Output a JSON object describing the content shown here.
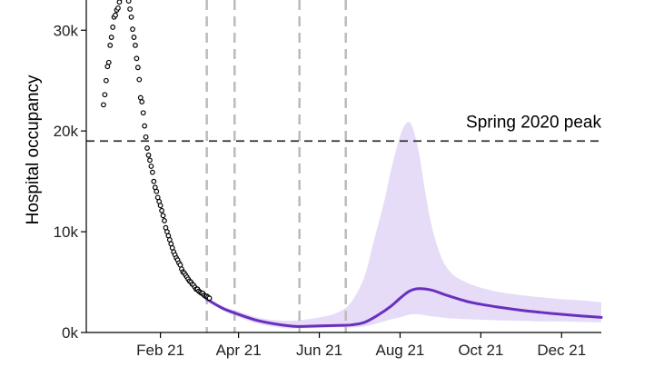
{
  "chart_data": {
    "type": "line",
    "title": "",
    "xlabel": "",
    "ylabel": "Hospital occupancy",
    "x_ticks": [
      "Feb 21",
      "Apr 21",
      "Jun 21",
      "Aug 21",
      "Oct 21",
      "Dec 21"
    ],
    "x_tick_dates": [
      "2021-02-01",
      "2021-04-01",
      "2021-06-01",
      "2021-08-01",
      "2021-10-01",
      "2021-12-01"
    ],
    "xlim": [
      "2020-12-07",
      "2021-12-31"
    ],
    "y_ticks": [
      0,
      10000,
      20000,
      30000
    ],
    "y_tick_labels": [
      "0k",
      "10k",
      "20k",
      "30k"
    ],
    "ylim": [
      0,
      33000
    ],
    "reference_line": {
      "label": "Spring 2020 peak",
      "y": 19000,
      "style": "dashed",
      "color": "#333333"
    },
    "vertical_lines": {
      "dates": [
        "2021-03-08",
        "2021-03-29",
        "2021-05-17",
        "2021-06-21"
      ],
      "style": "dashed",
      "color": "#bbbbbb"
    },
    "series": [
      {
        "type": "scatter",
        "color": "#000000",
        "x": [
          "2020-12-20",
          "2020-12-21",
          "2020-12-22",
          "2020-12-23",
          "2020-12-24",
          "2020-12-25",
          "2020-12-26",
          "2020-12-27",
          "2020-12-28",
          "2020-12-29",
          "2020-12-30",
          "2020-12-31",
          "2021-01-01",
          "2021-01-02",
          "2021-01-03",
          "2021-01-08",
          "2021-01-09",
          "2021-01-10",
          "2021-01-11",
          "2021-01-12",
          "2021-01-13",
          "2021-01-14",
          "2021-01-15",
          "2021-01-16",
          "2021-01-17",
          "2021-01-18",
          "2021-01-19",
          "2021-01-20",
          "2021-01-21",
          "2021-01-22",
          "2021-01-23",
          "2021-01-24",
          "2021-01-25",
          "2021-01-26",
          "2021-01-27",
          "2021-01-28",
          "2021-01-29",
          "2021-01-30",
          "2021-01-31",
          "2021-02-01",
          "2021-02-02",
          "2021-02-03",
          "2021-02-04",
          "2021-02-05",
          "2021-02-06",
          "2021-02-07",
          "2021-02-08",
          "2021-02-09",
          "2021-02-10",
          "2021-02-11",
          "2021-02-12",
          "2021-02-13",
          "2021-02-14",
          "2021-02-15",
          "2021-02-16",
          "2021-02-17",
          "2021-02-18",
          "2021-02-19",
          "2021-02-20",
          "2021-02-21",
          "2021-02-22",
          "2021-02-23",
          "2021-02-24",
          "2021-02-25",
          "2021-02-26",
          "2021-02-27",
          "2021-02-28",
          "2021-03-01",
          "2021-03-02",
          "2021-03-03",
          "2021-03-04",
          "2021-03-05",
          "2021-03-06",
          "2021-03-07",
          "2021-03-08",
          "2021-03-09",
          "2021-03-10"
        ],
        "y": [
          22600,
          23600,
          25000,
          26400,
          26800,
          28500,
          29300,
          30300,
          31300,
          31500,
          32000,
          32200,
          32800,
          33200,
          33500,
          32900,
          32100,
          31300,
          30100,
          29300,
          28500,
          27200,
          26300,
          25100,
          23300,
          22900,
          21800,
          20500,
          19400,
          18300,
          17600,
          17100,
          16500,
          15900,
          15000,
          14400,
          14000,
          13400,
          13000,
          12600,
          12100,
          11600,
          11100,
          10400,
          10000,
          9600,
          9200,
          8800,
          8400,
          8000,
          7700,
          7400,
          7200,
          6900,
          6700,
          6300,
          6000,
          5900,
          5700,
          5500,
          5300,
          5100,
          5000,
          4800,
          4700,
          4500,
          4300,
          4300,
          4100,
          4000,
          3900,
          3900,
          3700,
          3600,
          3600,
          3500,
          3400
        ]
      },
      {
        "type": "line",
        "color": "#6a2fbf",
        "x": [
          "2021-03-08",
          "2021-03-20",
          "2021-04-01",
          "2021-04-15",
          "2021-05-01",
          "2021-05-15",
          "2021-06-01",
          "2021-06-15",
          "2021-06-25",
          "2021-07-05",
          "2021-07-15",
          "2021-07-25",
          "2021-08-01",
          "2021-08-08",
          "2021-08-15",
          "2021-08-25",
          "2021-09-05",
          "2021-09-20",
          "2021-10-01",
          "2021-10-15",
          "2021-11-01",
          "2021-11-15",
          "2021-12-01",
          "2021-12-15",
          "2021-12-31"
        ],
        "y": [
          3300,
          2400,
          1800,
          1200,
          800,
          600,
          650,
          700,
          750,
          1000,
          1700,
          2600,
          3400,
          4100,
          4350,
          4200,
          3700,
          3100,
          2800,
          2500,
          2200,
          2000,
          1800,
          1650,
          1500
        ]
      },
      {
        "type": "area",
        "color": "#e6dcf7",
        "x": [
          "2021-03-08",
          "2021-03-20",
          "2021-04-01",
          "2021-04-15",
          "2021-05-01",
          "2021-05-15",
          "2021-06-01",
          "2021-06-15",
          "2021-06-25",
          "2021-07-05",
          "2021-07-12",
          "2021-07-20",
          "2021-07-25",
          "2021-08-01",
          "2021-08-06",
          "2021-08-10",
          "2021-08-15",
          "2021-08-20",
          "2021-08-25",
          "2021-09-01",
          "2021-09-08",
          "2021-09-15",
          "2021-09-25",
          "2021-10-05",
          "2021-10-15",
          "2021-11-01",
          "2021-11-15",
          "2021-12-01",
          "2021-12-15",
          "2021-12-31"
        ],
        "upper": [
          3400,
          2600,
          2100,
          1500,
          1200,
          1200,
          1500,
          2000,
          3000,
          5500,
          9000,
          13000,
          16000,
          19500,
          20800,
          20500,
          18000,
          14000,
          10500,
          7500,
          6000,
          5300,
          4700,
          4300,
          4000,
          3700,
          3500,
          3300,
          3200,
          3000
        ],
        "lower": [
          3200,
          2200,
          1500,
          900,
          500,
          400,
          450,
          500,
          500,
          600,
          800,
          1100,
          1300,
          1500,
          1700,
          1800,
          1800,
          1700,
          1600,
          1500,
          1400,
          1350,
          1300,
          1250,
          1200,
          1150,
          1100,
          1100,
          1050,
          1000
        ]
      }
    ]
  }
}
